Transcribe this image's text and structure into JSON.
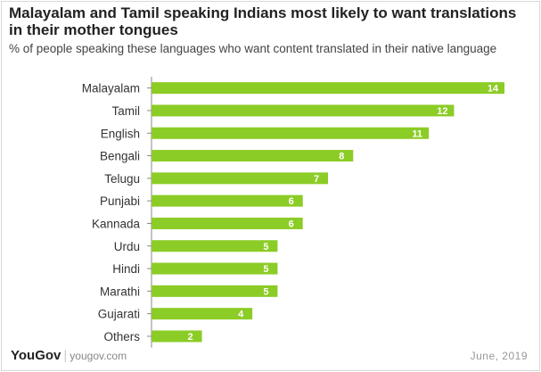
{
  "header": {
    "title": "Malayalam and Tamil speaking Indians most likely to want translations in their mother tongues",
    "subtitle": "% of people speaking these languages who want content translated in their native language"
  },
  "footer": {
    "brand": "YouGov",
    "separator": "|",
    "url": "yougov.com",
    "date": "June, 2019"
  },
  "colors": {
    "bar": "#8ccc26",
    "axis": "#888888"
  },
  "chart_data": {
    "type": "bar",
    "orientation": "horizontal",
    "categories": [
      "Malayalam",
      "Tamil",
      "English",
      "Bengali",
      "Telugu",
      "Punjabi",
      "Kannada",
      "Urdu",
      "Hindi",
      "Marathi",
      "Gujarati",
      "Others"
    ],
    "values": [
      14,
      12,
      11,
      8,
      7,
      6,
      6,
      5,
      5,
      5,
      4,
      2
    ],
    "title": "Malayalam and Tamil speaking Indians most likely to want translations in their mother tongues",
    "subtitle": "% of people speaking these languages who want content translated in their native language",
    "xlabel": "",
    "ylabel": "",
    "xlim": [
      0,
      14
    ],
    "grid": false,
    "legend": "none",
    "data_labels": "inside-end"
  }
}
